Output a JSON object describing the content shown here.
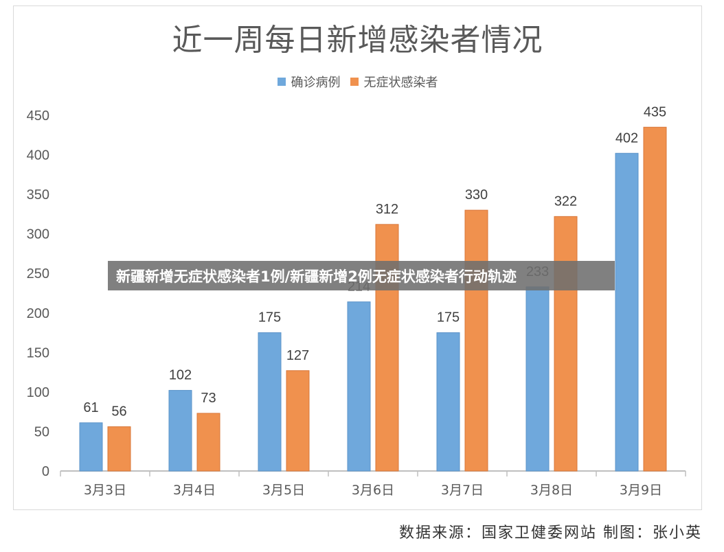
{
  "chart_data": {
    "type": "bar",
    "title": "近一周每日新增感染者情况",
    "categories": [
      "3月3日",
      "3月4日",
      "3月5日",
      "3月6日",
      "3月7日",
      "3月8日",
      "3月9日"
    ],
    "series": [
      {
        "name": "确诊病例",
        "values": [
          61,
          102,
          175,
          214,
          175,
          233,
          402
        ],
        "color": "#6fa8dc"
      },
      {
        "name": "无症状感染者",
        "values": [
          56,
          73,
          127,
          312,
          330,
          322,
          435
        ],
        "color": "#f0914e"
      }
    ],
    "value_labels": [
      [
        "61",
        "102",
        "175",
        "214",
        "175",
        "233",
        "402"
      ],
      [
        "56",
        "73",
        "127",
        "312",
        "330",
        "322",
        "435"
      ]
    ],
    "ylim": [
      0,
      450
    ],
    "yticks": [
      0,
      50,
      100,
      150,
      200,
      250,
      300,
      350,
      400,
      450
    ],
    "legend_position": "top",
    "grid": false
  },
  "banner": {
    "text": "新疆新增无症状感染者1例/新疆新增2例无症状感染者行动轨迹"
  },
  "source": {
    "text": "数据来源：国家卫健委网站 制图：张小英"
  }
}
